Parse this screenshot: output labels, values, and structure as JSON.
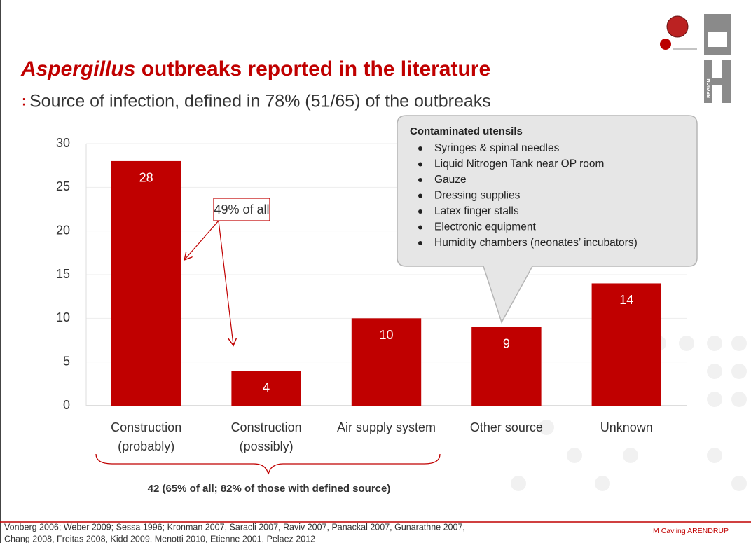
{
  "title": {
    "italic": "Aspergillus",
    "rest": "outbreaks reported in the literature"
  },
  "subtitle": "Source of infection, defined in 78% (51/65) of the outbreaks",
  "chart_data": {
    "type": "bar",
    "categories": [
      [
        "Construction",
        "(probably)"
      ],
      [
        "Construction",
        "(possibly)"
      ],
      [
        "Air supply system"
      ],
      [
        "Other source"
      ],
      [
        "Unknown"
      ]
    ],
    "values": [
      28,
      4,
      10,
      9,
      14
    ],
    "color": "#c00000",
    "ylim": [
      0,
      30
    ],
    "yticks": [
      0,
      5,
      10,
      15,
      20,
      25,
      30
    ],
    "grid": true,
    "annotation": "49% of all",
    "brace_label": "42 (65% of all; 82% of those with defined source)"
  },
  "callout": {
    "heading": "Contaminated utensils",
    "items": [
      "Syringes & spinal needles",
      "Liquid Nitrogen Tank near OP room",
      "Gauze",
      "Dressing supplies",
      "Latex finger stalls",
      "Electronic equipment",
      "Humidity chambers (neonates’ incubators)"
    ]
  },
  "footer": {
    "references": [
      "Vonberg 2006; Weber 2009; Sessa 1996; Kronman 2007, Saracli 2007, Raviv 2007, Panackal 2007, Gunarathne 2007,",
      "Chang 2008, Freitas 2008, Kidd 2009, Menotti 2010, Etienne 2001, Pelaez 2012"
    ],
    "author": "M Cavling ARENDRUP",
    "logo_text": "REGION"
  }
}
